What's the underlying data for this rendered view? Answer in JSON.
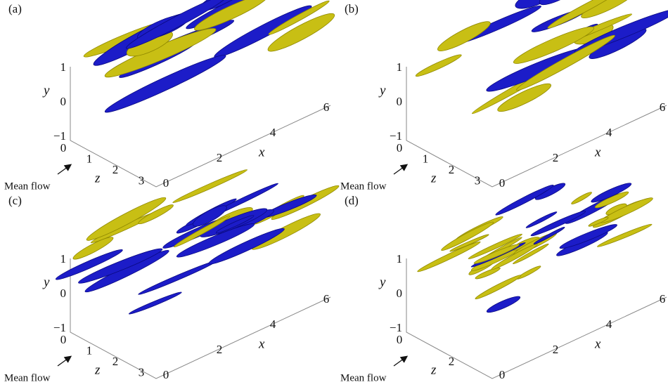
{
  "panels": [
    {
      "label": "(a)",
      "y_label": "y",
      "z_label": "z",
      "x_label": "x",
      "y_ticks": [
        "1",
        "0",
        "−1"
      ],
      "z_ticks": [
        "0",
        "1",
        "2",
        "3"
      ],
      "x_ticks": [
        "0",
        "2",
        "4",
        "6"
      ],
      "flow_label": "Mean flow"
    },
    {
      "label": "(b)",
      "y_label": "y",
      "z_label": "z",
      "x_label": "x",
      "y_ticks": [
        "1",
        "0",
        "−1"
      ],
      "z_ticks": [
        "0",
        "1",
        "2",
        "3"
      ],
      "x_ticks": [
        "0",
        "2",
        "4",
        "6"
      ],
      "flow_label": "Mean flow"
    },
    {
      "label": "(c)",
      "y_label": "y",
      "z_label": "z",
      "x_label": "x",
      "y_ticks": [
        "1",
        "0",
        "−1"
      ],
      "z_ticks": [
        "0",
        "1",
        "2",
        "3"
      ],
      "x_ticks": [
        "0",
        "2",
        "4",
        "6"
      ],
      "flow_label": "Mean flow"
    },
    {
      "label": "(d)",
      "y_label": "y",
      "z_label": "z",
      "x_label": "x",
      "y_ticks": [
        "1",
        "0",
        "−1"
      ],
      "z_ticks": [
        "0",
        "2"
      ],
      "x_ticks": [
        "0",
        "2",
        "4",
        "6"
      ],
      "flow_label": "Mean flow"
    }
  ]
}
